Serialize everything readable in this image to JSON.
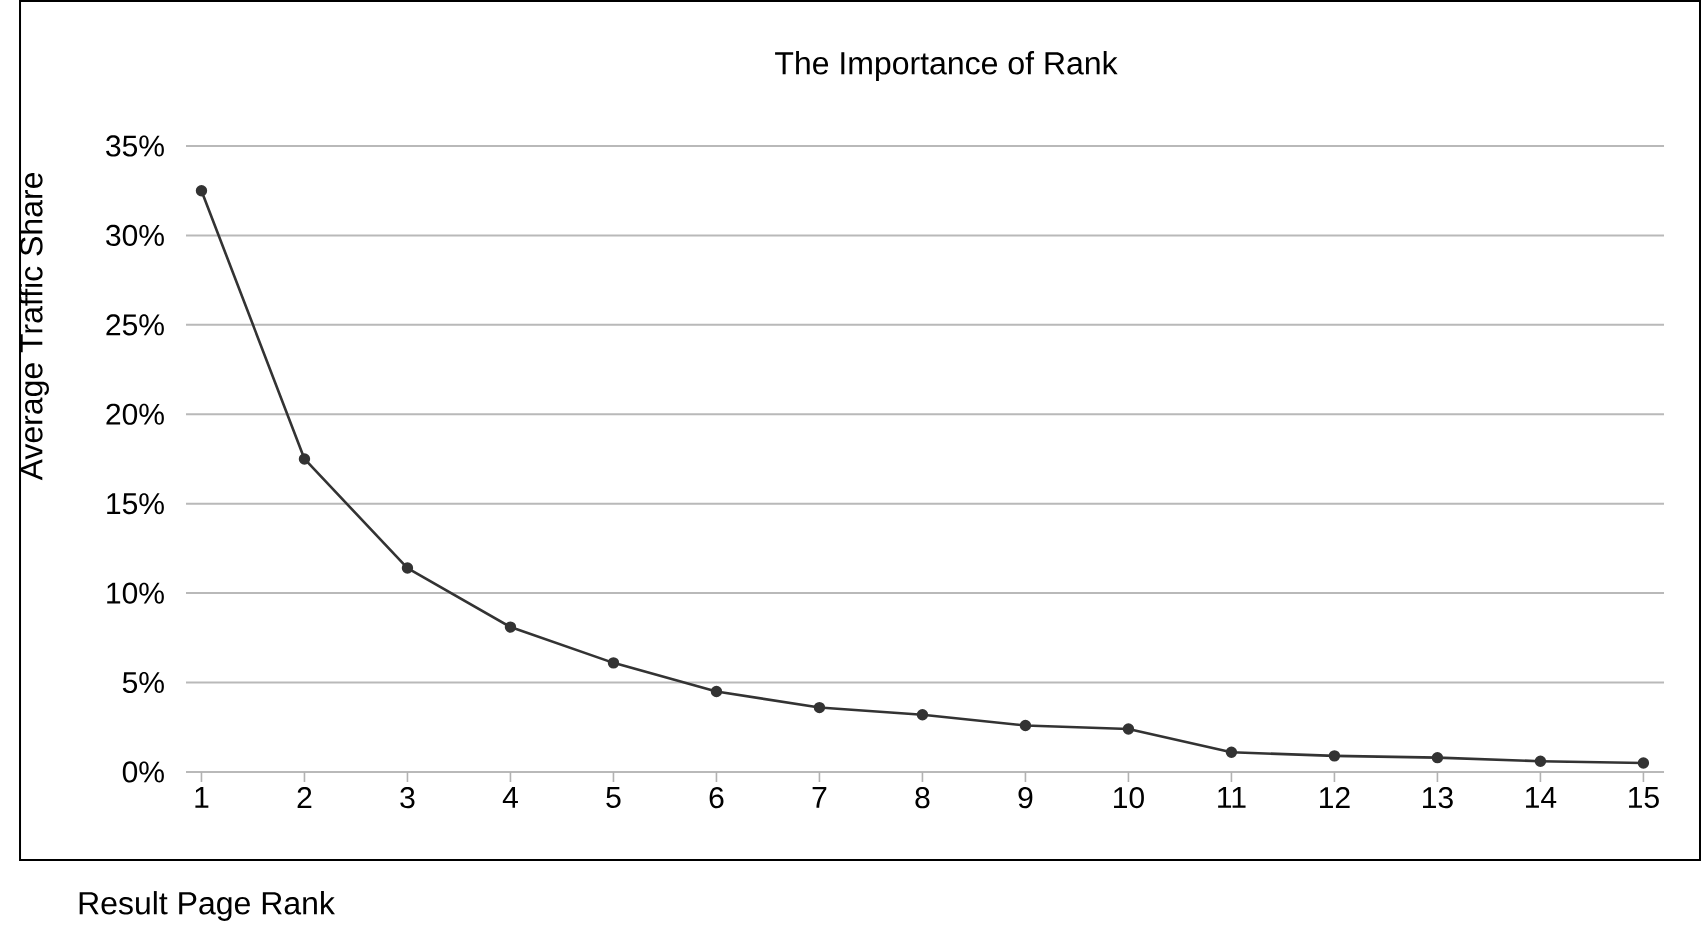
{
  "chart_data": {
    "type": "line",
    "title": "The Importance of Rank",
    "xlabel": "Result Page Rank",
    "ylabel": "Average Traffic Share",
    "x": [
      1,
      2,
      3,
      4,
      5,
      6,
      7,
      8,
      9,
      10,
      11,
      12,
      13,
      14,
      15
    ],
    "series": [
      {
        "color": "#333333",
        "values": [
          32.5,
          17.5,
          11.4,
          8.1,
          6.1,
          4.5,
          3.6,
          3.2,
          2.6,
          2.4,
          1.1,
          0.9,
          0.8,
          0.6,
          0.5
        ]
      }
    ],
    "xlim": [
      0.85,
      15.2
    ],
    "xticks": [
      1,
      2,
      3,
      4,
      5,
      6,
      7,
      8,
      9,
      10,
      11,
      12,
      13,
      14,
      15
    ],
    "ylim": [
      0,
      35
    ],
    "yticks": [
      {
        "value": 0,
        "label": "0%"
      },
      {
        "value": 5,
        "label": "5%"
      },
      {
        "value": 10,
        "label": "10%"
      },
      {
        "value": 15,
        "label": "15%"
      },
      {
        "value": 20,
        "label": "20%"
      },
      {
        "value": 25,
        "label": "25%"
      },
      {
        "value": 30,
        "label": "30%"
      },
      {
        "value": 35,
        "label": "35%"
      }
    ],
    "grid": "y",
    "marker": "circle",
    "line_style": "solid"
  }
}
